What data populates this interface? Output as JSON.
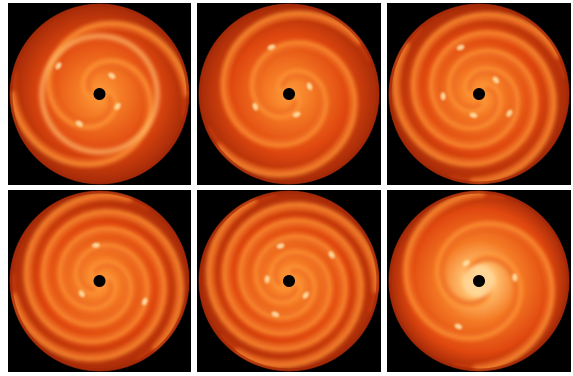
{
  "figure": {
    "panels": [
      {
        "id": "p1",
        "arms": 2,
        "twist": 1.0,
        "bright_ring": true,
        "core": "medium",
        "clumps": 4,
        "rotation": 0
      },
      {
        "id": "p2",
        "arms": 2,
        "twist": 1.3,
        "bright_ring": false,
        "core": "small",
        "clumps": 4,
        "rotation": 35
      },
      {
        "id": "p3",
        "arms": 3,
        "twist": 1.4,
        "bright_ring": false,
        "core": "small",
        "clumps": 5,
        "rotation": 70
      },
      {
        "id": "p4",
        "arms": 3,
        "twist": 1.5,
        "bright_ring": false,
        "core": "small",
        "clumps": 3,
        "rotation": 110
      },
      {
        "id": "p5",
        "arms": 3,
        "twist": 1.6,
        "bright_ring": false,
        "core": "small",
        "clumps": 5,
        "rotation": 150
      },
      {
        "id": "p6",
        "arms": 2,
        "twist": 1.2,
        "bright_ring": false,
        "core": "bright",
        "clumps": 3,
        "rotation": 200
      }
    ],
    "colors": {
      "background": "#000000",
      "disk_outer": "#a52a08",
      "disk_mid": "#e0480f",
      "disk_inner": "#f47a25",
      "arm": "#ff9a3a",
      "arm_bright": "#ffc070",
      "clump": "#ffe0a8",
      "core_glow": "#ffd89a",
      "hole": "#000000"
    }
  }
}
